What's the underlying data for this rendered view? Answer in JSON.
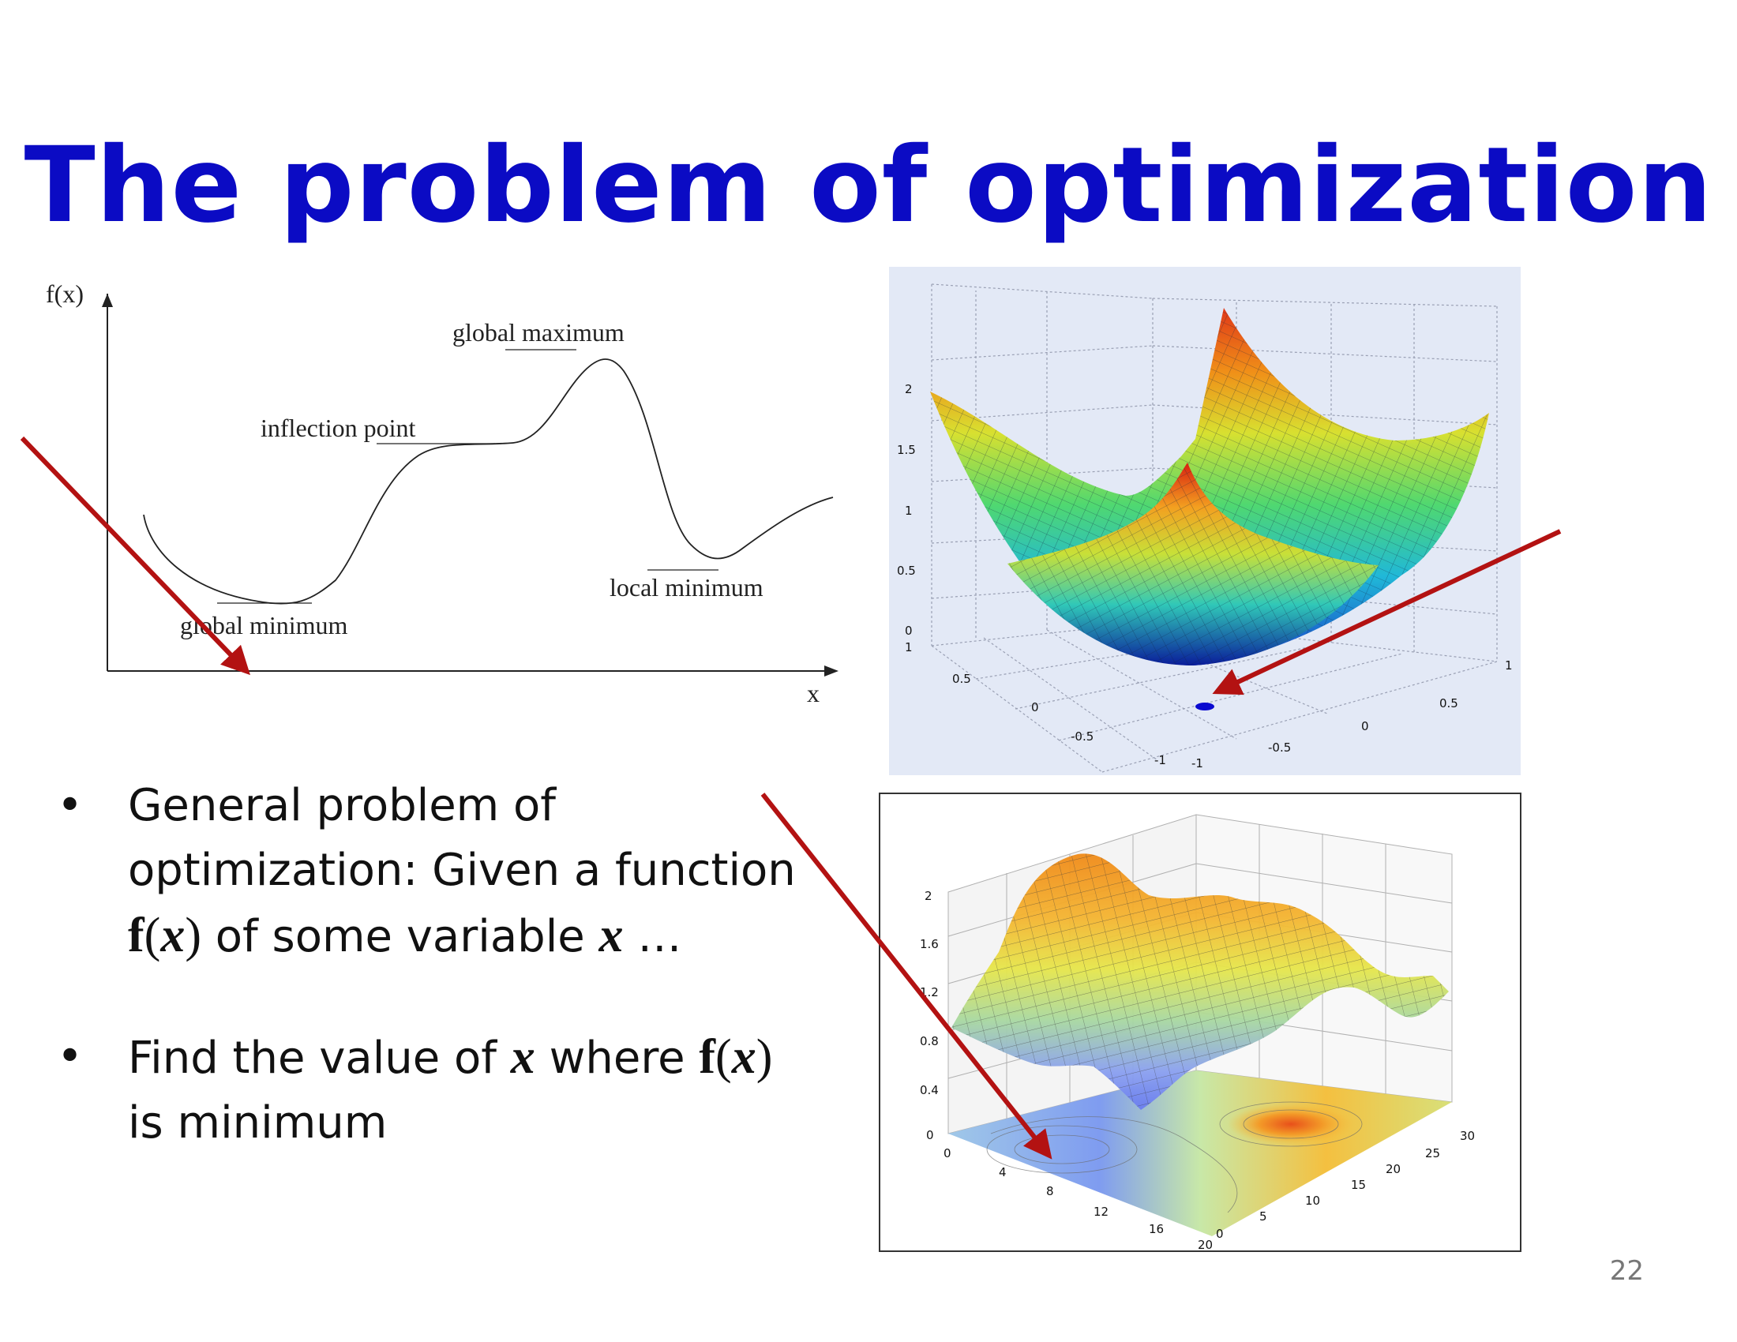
{
  "slide": {
    "title": "The problem of optimization",
    "page_number": "22"
  },
  "curve_diagram": {
    "y_axis_label": "f(x)",
    "x_axis_label": "x",
    "annotations": {
      "global_maximum": "global maximum",
      "inflection_point": "inflection point",
      "local_minimum": "local minimum",
      "global_minimum": "global minimum"
    }
  },
  "surface_plot_1": {
    "z_ticks": [
      "2",
      "1.5",
      "1",
      "0.5",
      "0"
    ],
    "x_ticks": [
      "1",
      "0.5",
      "0",
      "-0.5",
      "-1"
    ],
    "y_ticks": [
      "-1",
      "-0.5",
      "0",
      "0.5",
      "1"
    ]
  },
  "surface_plot_2": {
    "z_ticks": [
      "2",
      "1.6",
      "1.2",
      "0.8",
      "0.4",
      "0"
    ],
    "x_ticks": [
      "0",
      "4",
      "8",
      "12",
      "16",
      "20"
    ],
    "y_ticks": [
      "0",
      "5",
      "10",
      "15",
      "20",
      "25",
      "30"
    ]
  },
  "bullets": {
    "b1": {
      "marker": "•",
      "line1": "General problem of",
      "line2": "optimization: Given a function",
      "f": "f",
      "open": "(",
      "x": "x",
      "close": ")",
      "tail_pre": " of some variable ",
      "x2": "x",
      "tail_post": " …"
    },
    "b2": {
      "marker": "•",
      "pre": "Find the value of ",
      "x": "x",
      "mid": " where ",
      "f": "f",
      "open": "(",
      "x2": "x",
      "close": ")",
      "line2": "is minimum"
    }
  },
  "colors": {
    "title": "#0b0bc4",
    "arrow": "#b31212",
    "marker_dot": "#0a0ad0"
  }
}
